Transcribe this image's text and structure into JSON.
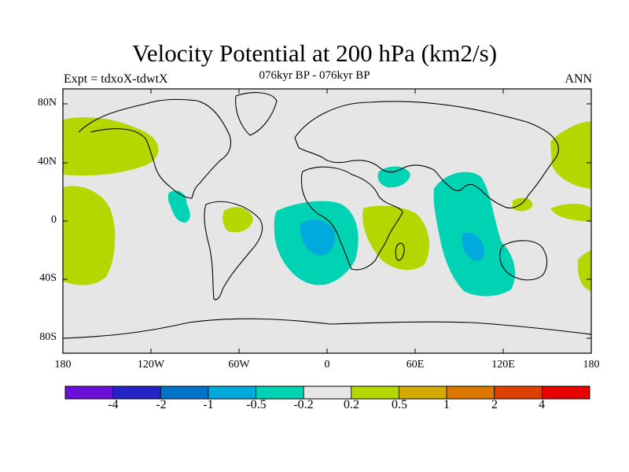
{
  "title": "Velocity Potential at 200 hPa (km2/s)",
  "subtitle": "076kyr BP - 076kyr BP",
  "left_label": "Expt = tdxoX-tdwtX",
  "right_label": "ANN",
  "lat_ticks": [
    "80N",
    "40N",
    "0",
    "40S",
    "80S"
  ],
  "lon_ticks": [
    "180",
    "120W",
    "60W",
    "0",
    "60E",
    "120E",
    "180"
  ],
  "colorbar": {
    "colors": [
      "#6a0fd6",
      "#2323c8",
      "#0073c8",
      "#00aadc",
      "#00d2b4",
      "#e6e6e6",
      "#b4d700",
      "#d2aa00",
      "#dc7800",
      "#dc4100",
      "#e60000"
    ],
    "labels": [
      "-4",
      "-2",
      "-1",
      "-0.5",
      "-0.2",
      "0.2",
      "0.5",
      "1",
      "2",
      "4"
    ]
  },
  "colors": {
    "background": "#e6e6e6",
    "positive": "#b4d700",
    "negative_weak": "#00d2b4",
    "negative_moderate": "#00aadc"
  }
}
